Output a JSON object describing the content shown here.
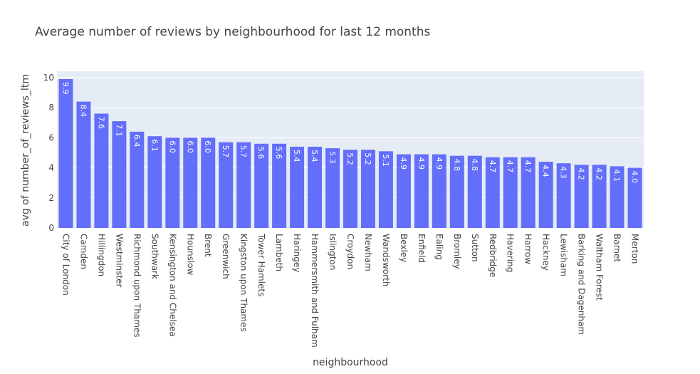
{
  "chart_data": {
    "type": "bar",
    "title": "Average number of reviews by neighbourhood for last 12 months",
    "xlabel": "neighbourhood",
    "ylabel": "avg of number_of_reviews_ltm",
    "ylim": [
      0,
      10.42
    ],
    "yticks": [
      "0",
      "2",
      "4",
      "6",
      "8",
      "10"
    ],
    "bar_color": "#636efa",
    "plot_bg": "#e5ecf6",
    "grid": true,
    "categories": [
      "City of London",
      "Camden",
      "Hillingdon",
      "Westminster",
      "Richmond upon Thames",
      "Southwark",
      "Kensington and Chelsea",
      "Hounslow",
      "Brent",
      "Greenwich",
      "Kingston upon Thames",
      "Tower Hamlets",
      "Lambeth",
      "Haringey",
      "Hammersmith and Fulham",
      "Islington",
      "Croydon",
      "Newham",
      "Wandsworth",
      "Bexley",
      "Enfield",
      "Ealing",
      "Bromley",
      "Sutton",
      "Redbridge",
      "Havering",
      "Harrow",
      "Hackney",
      "Lewisham",
      "Barking and Dagenham",
      "Waltham Forest",
      "Barnet",
      "Merton"
    ],
    "values": [
      9.9,
      8.4,
      7.6,
      7.1,
      6.4,
      6.1,
      6.0,
      6.0,
      6.0,
      5.7,
      5.7,
      5.6,
      5.6,
      5.4,
      5.4,
      5.3,
      5.2,
      5.2,
      5.1,
      4.9,
      4.9,
      4.9,
      4.8,
      4.8,
      4.7,
      4.7,
      4.7,
      4.4,
      4.3,
      4.2,
      4.2,
      4.1,
      4.0
    ],
    "labels": [
      "9.9",
      "8.4",
      "7.6",
      "7.1",
      "6.4",
      "6.1",
      "6.0",
      "6.0",
      "6.0",
      "5.7",
      "5.7",
      "5.6",
      "5.6",
      "5.4",
      "5.4",
      "5.3",
      "5.2",
      "5.2",
      "5.1",
      "4.9",
      "4.9",
      "4.9",
      "4.8",
      "4.8",
      "4.7",
      "4.7",
      "4.7",
      "4.4",
      "4.3",
      "4.2",
      "4.2",
      "4.1",
      "4.0"
    ]
  }
}
